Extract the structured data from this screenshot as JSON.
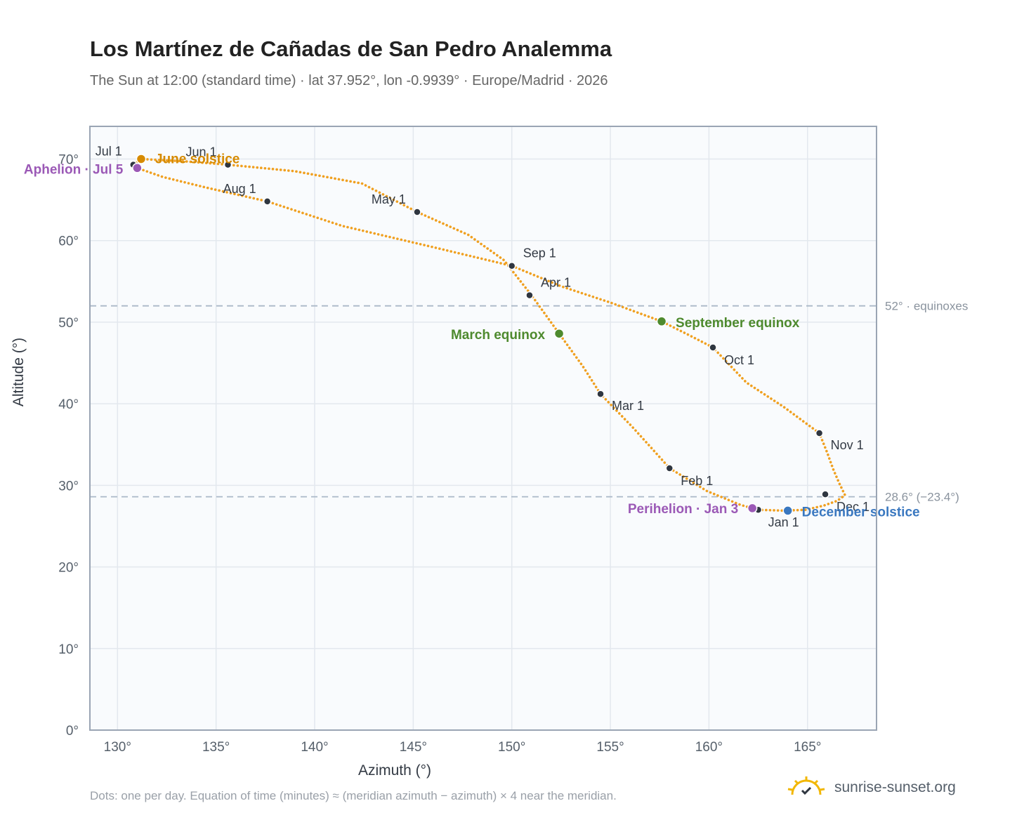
{
  "header": {
    "title": "Los Martínez de Cañadas de San Pedro Analemma",
    "subtitle": "The Sun at 12:00 (standard time) · lat 37.952°, lon -0.9939° · Europe/Madrid · 2026"
  },
  "footer": {
    "note": "Dots: one per day. Equation of time (minutes) ≈ (meridian azimuth − azimuth) × 4 near the meridian.",
    "brand": "sunrise-sunset.org",
    "brand_icon": "sun-horizon-icon"
  },
  "chart_data": {
    "type": "scatter",
    "xlabel": "Azimuth (°)",
    "ylabel": "Altitude (°)",
    "xlim": [
      128.6,
      168.5
    ],
    "ylim": [
      0,
      74
    ],
    "xticks": [
      130,
      135,
      140,
      145,
      150,
      155,
      160,
      165
    ],
    "yticks": [
      0,
      10,
      20,
      30,
      40,
      50,
      60,
      70
    ],
    "tick_suffix": "°",
    "grid": true,
    "series": [
      {
        "color": "#f0a020",
        "points": [
          [
            162.5,
            27.0
          ],
          [
            163.8,
            26.9
          ],
          [
            164.9,
            27.0
          ],
          [
            165.8,
            27.5
          ],
          [
            166.5,
            28.1
          ],
          [
            166.9,
            28.8
          ],
          [
            166.6,
            30.3
          ],
          [
            166.3,
            32.0
          ],
          [
            166.0,
            34.0
          ],
          [
            165.6,
            36.4
          ],
          [
            163.8,
            39.6
          ],
          [
            161.9,
            42.6
          ],
          [
            160.2,
            46.9
          ],
          [
            159.0,
            48.4
          ],
          [
            157.6,
            50.1
          ],
          [
            155.0,
            52.4
          ],
          [
            152.5,
            54.4
          ],
          [
            150.0,
            56.9
          ],
          [
            146.0,
            59.2
          ],
          [
            141.4,
            61.8
          ],
          [
            137.6,
            64.8
          ],
          [
            134.5,
            66.5
          ],
          [
            132.3,
            67.8
          ],
          [
            131.0,
            68.9
          ],
          [
            130.8,
            69.3
          ],
          [
            131.2,
            70.0
          ],
          [
            133.5,
            69.7
          ],
          [
            135.6,
            69.3
          ],
          [
            139.0,
            68.5
          ],
          [
            142.4,
            67.0
          ],
          [
            145.2,
            63.5
          ],
          [
            147.8,
            60.7
          ],
          [
            149.6,
            57.6
          ],
          [
            151.0,
            53.3
          ],
          [
            152.4,
            48.6
          ],
          [
            153.6,
            44.6
          ],
          [
            154.5,
            41.2
          ],
          [
            156.1,
            37.2
          ],
          [
            157.0,
            34.8
          ],
          [
            158.0,
            32.1
          ],
          [
            159.9,
            29.3
          ],
          [
            161.6,
            27.6
          ],
          [
            162.5,
            27.0
          ]
        ]
      }
    ],
    "monthly_markers": [
      {
        "label": "Jan 1",
        "x": 162.5,
        "y": 27.0,
        "color": "#2f3640"
      },
      {
        "label": "Feb 1",
        "x": 158.0,
        "y": 32.1,
        "color": "#2f3640"
      },
      {
        "label": "Mar 1",
        "x": 154.5,
        "y": 41.2,
        "color": "#2f3640"
      },
      {
        "label": "Apr 1",
        "x": 150.9,
        "y": 53.3,
        "color": "#2f3640"
      },
      {
        "label": "May 1",
        "x": 145.2,
        "y": 63.5,
        "color": "#2f3640"
      },
      {
        "label": "Jun 1",
        "x": 135.6,
        "y": 69.3,
        "color": "#2f3640"
      },
      {
        "label": "Jul 1",
        "x": 130.8,
        "y": 69.3,
        "color": "#2f3640"
      },
      {
        "label": "Aug 1",
        "x": 137.6,
        "y": 64.8,
        "color": "#2f3640"
      },
      {
        "label": "Sep 1",
        "x": 150.0,
        "y": 56.9,
        "color": "#2f3640"
      },
      {
        "label": "Oct 1",
        "x": 160.2,
        "y": 46.9,
        "color": "#2f3640"
      },
      {
        "label": "Nov 1",
        "x": 165.6,
        "y": 36.4,
        "color": "#2f3640"
      },
      {
        "label": "Dec 1",
        "x": 165.9,
        "y": 28.9,
        "color": "#2f3640"
      }
    ],
    "events": [
      {
        "label": "June solstice",
        "x": 131.2,
        "y": 70.0,
        "color": "#d68a00"
      },
      {
        "label": "Aphelion · Jul 5",
        "x": 131.0,
        "y": 68.9,
        "color": "#9b59b6"
      },
      {
        "label": "March equinox",
        "x": 152.4,
        "y": 48.6,
        "color": "#4e8a2e"
      },
      {
        "label": "September equinox",
        "x": 157.6,
        "y": 50.1,
        "color": "#4e8a2e"
      },
      {
        "label": "Perihelion · Jan 3",
        "x": 162.2,
        "y": 27.2,
        "color": "#9b59b6"
      },
      {
        "label": "December solstice",
        "x": 164.0,
        "y": 26.9,
        "color": "#3a78c0"
      }
    ],
    "reference_lines": [
      {
        "y": 52.0,
        "label": "52° · equinoxes",
        "color": "#aab8c8"
      },
      {
        "y": 28.6,
        "label": "28.6° (−23.4°)",
        "color": "#aab8c8"
      }
    ],
    "colors": {
      "plot_bg": "#f9fbfd",
      "grid": "#e3e8ee",
      "frame": "#9aa5b4",
      "axis_text": "#555f6a"
    }
  }
}
